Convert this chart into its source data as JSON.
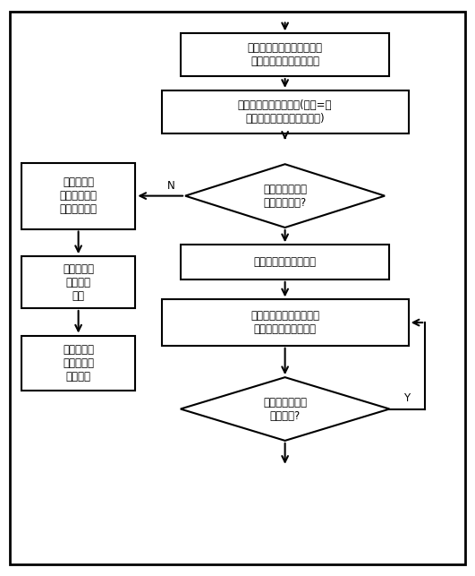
{
  "bg_color": "#ffffff",
  "border_color": "#000000",
  "box_color": "#ffffff",
  "text_color": "#000000",
  "nodes": {
    "box1": {
      "text": "初始化，并设置好串行口中\n断参数，准备好接收数据"
    },
    "box2": {
      "text": "延时一指定值的毫秒值(其值=本\n智能电容器地址乘一固定值)"
    },
    "diamond1": {
      "text": "延时期间接收到\n串行口数据否?"
    },
    "box3": {
      "text": "发送心跳命\n令，将本控制\n器作主控制器"
    },
    "box4": {
      "text": "将本控制器作从控制器"
    },
    "box5": {
      "text": "接受主控制器命令，按设\n定相应命令功能运行。"
    },
    "box_auto": {
      "text": "启动自动识\n别地址功\n能。"
    },
    "box_ctrl": {
      "text": "控制整个智\n能电容器系\n统运行。"
    },
    "diamond2": {
      "text": "在心跳周期内接\n收到命令?"
    }
  }
}
